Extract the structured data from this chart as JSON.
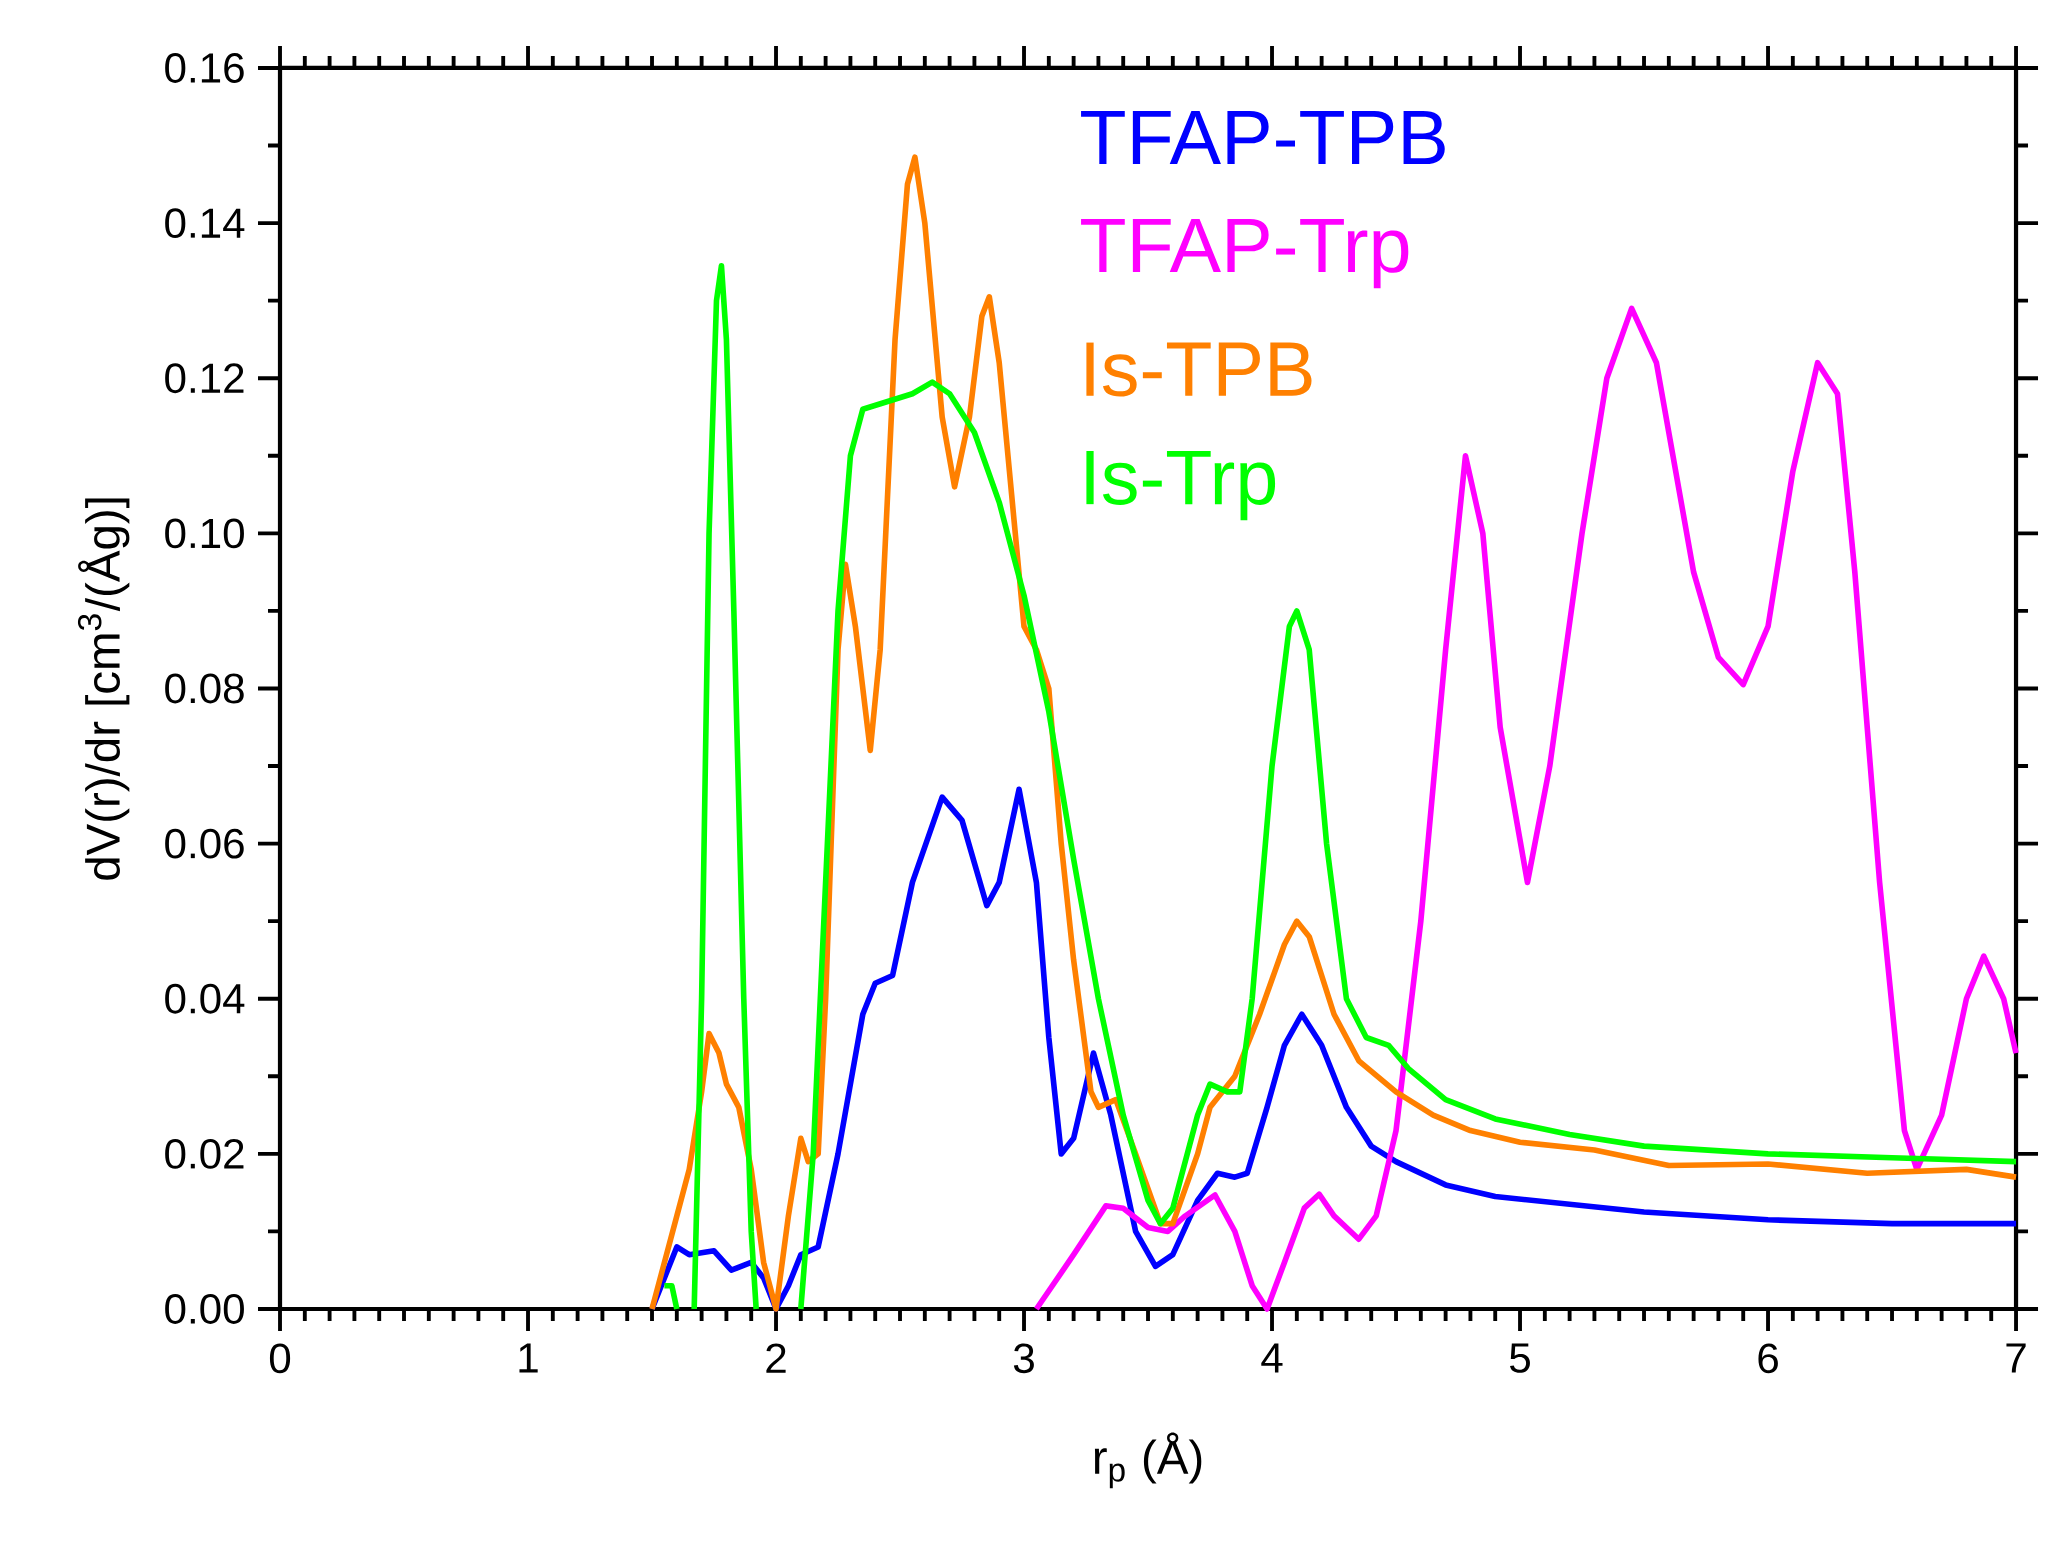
{
  "chart_data": {
    "type": "line",
    "xlabel": "r$_{p}$ (Å)",
    "ylabel": "dV(r)/dr [cm$^{3}$/(Åg)]",
    "xlim": [
      0,
      7
    ],
    "ylim": [
      0,
      0.16
    ],
    "xticks": [
      0,
      1,
      2,
      3,
      4,
      5,
      6,
      7
    ],
    "yticks": [
      {
        "value": 0,
        "label": "0.00"
      },
      {
        "value": 0.02,
        "label": "0.02"
      },
      {
        "value": 0.04,
        "label": "0.04"
      },
      {
        "value": 0.06,
        "label": "0.06"
      },
      {
        "value": 0.08,
        "label": "0.08"
      },
      {
        "value": 0.1,
        "label": "0.10"
      },
      {
        "value": 0.12,
        "label": "0.12"
      },
      {
        "value": 0.14,
        "label": "0.14"
      },
      {
        "value": 0.16,
        "label": "0.16"
      }
    ],
    "grid": false,
    "legend": "top right",
    "marker": "none",
    "line_style": "solid",
    "series": [
      {
        "name": "TFAP-TPB",
        "color": "#0000ff",
        "x": [
          1.5,
          1.6,
          1.65,
          1.75,
          1.82,
          1.9,
          1.95,
          2.0,
          2.05,
          2.1,
          2.17,
          2.25,
          2.35,
          2.4,
          2.47,
          2.55,
          2.67,
          2.75,
          2.85,
          2.9,
          2.98,
          3.05,
          3.1,
          3.15,
          3.2,
          3.28,
          3.35,
          3.45,
          3.53,
          3.6,
          3.7,
          3.78,
          3.85,
          3.9,
          3.98,
          4.05,
          4.12,
          4.2,
          4.3,
          4.4,
          4.5,
          4.7,
          4.9,
          5.2,
          5.5,
          6.0,
          6.5,
          7.0
        ],
        "values": [
          0,
          0.008,
          0.007,
          0.0075,
          0.005,
          0.006,
          0.004,
          0.0,
          0.003,
          0.007,
          0.008,
          0.02,
          0.038,
          0.042,
          0.043,
          0.055,
          0.066,
          0.063,
          0.052,
          0.055,
          0.067,
          0.055,
          0.035,
          0.02,
          0.022,
          0.033,
          0.025,
          0.01,
          0.0055,
          0.007,
          0.014,
          0.0175,
          0.017,
          0.0175,
          0.026,
          0.034,
          0.038,
          0.034,
          0.026,
          0.021,
          0.019,
          0.016,
          0.0145,
          0.0135,
          0.0125,
          0.0115,
          0.011,
          0.011
        ]
      },
      {
        "name": "TFAP-Trp",
        "color": "#ff00ff",
        "x": [
          3.05,
          3.2,
          3.33,
          3.4,
          3.5,
          3.58,
          3.65,
          3.77,
          3.85,
          3.92,
          3.98,
          4.05,
          4.13,
          4.19,
          4.25,
          4.35,
          4.42,
          4.5,
          4.6,
          4.7,
          4.78,
          4.85,
          4.92,
          5.03,
          5.12,
          5.25,
          5.35,
          5.45,
          5.55,
          5.7,
          5.8,
          5.9,
          6.0,
          6.1,
          6.2,
          6.28,
          6.35,
          6.45,
          6.55,
          6.6,
          6.7,
          6.8,
          6.87,
          6.95,
          7.0
        ],
        "values": [
          0,
          0.007,
          0.0133,
          0.013,
          0.0105,
          0.01,
          0.012,
          0.0147,
          0.01,
          0.003,
          0.0,
          0.006,
          0.013,
          0.0148,
          0.012,
          0.009,
          0.012,
          0.023,
          0.05,
          0.085,
          0.11,
          0.1,
          0.075,
          0.055,
          0.07,
          0.1,
          0.12,
          0.129,
          0.122,
          0.095,
          0.084,
          0.0805,
          0.088,
          0.108,
          0.122,
          0.118,
          0.095,
          0.055,
          0.023,
          0.018,
          0.025,
          0.04,
          0.0455,
          0.04,
          0.033
        ]
      },
      {
        "name": "Is-TPB",
        "color": "#ff8000",
        "x": [
          1.5,
          1.6,
          1.65,
          1.7,
          1.73,
          1.77,
          1.8,
          1.85,
          1.9,
          1.95,
          2.0,
          2.05,
          2.1,
          2.13,
          2.17,
          2.2,
          2.25,
          2.28,
          2.32,
          2.38,
          2.42,
          2.48,
          2.53,
          2.56,
          2.6,
          2.67,
          2.72,
          2.78,
          2.83,
          2.86,
          2.9,
          2.95,
          3.0,
          3.05,
          3.1,
          3.15,
          3.2,
          3.27,
          3.3,
          3.37,
          3.45,
          3.55,
          3.6,
          3.7,
          3.75,
          3.85,
          3.95,
          4.05,
          4.1,
          4.15,
          4.25,
          4.35,
          4.5,
          4.65,
          4.8,
          5.0,
          5.3,
          5.6,
          6.0,
          6.4,
          6.8,
          7.0
        ],
        "values": [
          0,
          0.012,
          0.018,
          0.028,
          0.0355,
          0.033,
          0.029,
          0.026,
          0.018,
          0.006,
          0.0,
          0.012,
          0.022,
          0.019,
          0.02,
          0.04,
          0.085,
          0.096,
          0.088,
          0.072,
          0.085,
          0.125,
          0.145,
          0.1485,
          0.14,
          0.115,
          0.106,
          0.115,
          0.128,
          0.1305,
          0.122,
          0.105,
          0.088,
          0.085,
          0.08,
          0.06,
          0.045,
          0.028,
          0.026,
          0.027,
          0.02,
          0.011,
          0.011,
          0.02,
          0.026,
          0.03,
          0.038,
          0.047,
          0.05,
          0.048,
          0.038,
          0.032,
          0.028,
          0.025,
          0.023,
          0.0215,
          0.0205,
          0.0185,
          0.0187,
          0.0175,
          0.018,
          0.017
        ]
      },
      {
        "name": "Is-Trp",
        "color": "#00ff00",
        "x": [
          1.55,
          1.58,
          1.6,
          1.64,
          1.67,
          1.7,
          1.73,
          1.76,
          1.78,
          1.8,
          1.83,
          1.87,
          1.9,
          1.92,
          2.0,
          2.1,
          2.15,
          2.2,
          2.25,
          2.3,
          2.35,
          2.45,
          2.55,
          2.63,
          2.7,
          2.8,
          2.9,
          3.0,
          3.1,
          3.2,
          3.3,
          3.4,
          3.5,
          3.55,
          3.6,
          3.7,
          3.75,
          3.82,
          3.87,
          3.92,
          4.0,
          4.07,
          4.1,
          4.15,
          4.22,
          4.3,
          4.38,
          4.47,
          4.55,
          4.7,
          4.9,
          5.2,
          5.5,
          6.0,
          6.5,
          7.0
        ],
        "values": [
          0.003,
          0.003,
          0,
          null,
          0,
          0.04,
          0.1,
          0.13,
          0.1345,
          0.125,
          0.09,
          0.04,
          0.01,
          0,
          null,
          0,
          0.02,
          0.055,
          0.09,
          0.11,
          0.116,
          0.117,
          0.118,
          0.1195,
          0.118,
          0.113,
          0.104,
          0.092,
          0.077,
          0.058,
          0.04,
          0.025,
          0.014,
          0.011,
          0.013,
          0.025,
          0.029,
          0.028,
          0.028,
          0.04,
          0.07,
          0.088,
          0.09,
          0.085,
          0.06,
          0.04,
          0.035,
          0.034,
          0.031,
          0.027,
          0.0245,
          0.0225,
          0.021,
          0.02,
          0.0195,
          0.019
        ]
      }
    ]
  }
}
